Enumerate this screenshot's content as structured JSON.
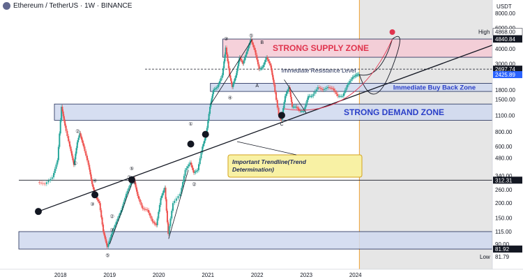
{
  "header": {
    "title": "Ethereum / TetherUS · 1W · BINANCE"
  },
  "currency": "USDT",
  "chart_data": {
    "type": "candlestick-log",
    "x_ticks": [
      "2018",
      "2019",
      "2020",
      "2021",
      "2022",
      "2023",
      "2024"
    ],
    "y_ticks": [
      "8000.00",
      "6000.00",
      "4000.00",
      "3000.00",
      "2400.00",
      "1800.00",
      "1500.00",
      "1100.00",
      "800.00",
      "600.00",
      "480.00",
      "340.00",
      "260.00",
      "200.00",
      "150.00",
      "115.00",
      "90.00"
    ],
    "high": {
      "label": "High",
      "value": "4868.00"
    },
    "low": {
      "label": "Low",
      "value": "81.79"
    },
    "price_tags": [
      {
        "value": "4840.84",
        "style": "dark"
      },
      {
        "value": "2697.74",
        "style": "dark"
      },
      {
        "value": "2425.89",
        "style": "blue"
      },
      {
        "value": "312.31",
        "style": "dark"
      },
      {
        "value": "81.92",
        "style": "dark"
      }
    ],
    "price_path": [
      [
        2017.55,
        300
      ],
      [
        2017.7,
        290
      ],
      [
        2017.85,
        330
      ],
      [
        2017.95,
        460
      ],
      [
        2018.03,
        1300
      ],
      [
        2018.1,
        900
      ],
      [
        2018.2,
        600
      ],
      [
        2018.28,
        420
      ],
      [
        2018.35,
        650
      ],
      [
        2018.4,
        780
      ],
      [
        2018.48,
        600
      ],
      [
        2018.58,
        420
      ],
      [
        2018.65,
        290
      ],
      [
        2018.72,
        230
      ],
      [
        2018.8,
        200
      ],
      [
        2018.88,
        115
      ],
      [
        2018.96,
        85
      ],
      [
        2019.05,
        110
      ],
      [
        2019.15,
        140
      ],
      [
        2019.25,
        175
      ],
      [
        2019.35,
        240
      ],
      [
        2019.45,
        300
      ],
      [
        2019.5,
        320
      ],
      [
        2019.58,
        230
      ],
      [
        2019.68,
        180
      ],
      [
        2019.78,
        175
      ],
      [
        2019.88,
        140
      ],
      [
        2019.96,
        130
      ],
      [
        2020.05,
        220
      ],
      [
        2020.13,
        270
      ],
      [
        2020.2,
        110
      ],
      [
        2020.3,
        200
      ],
      [
        2020.45,
        240
      ],
      [
        2020.55,
        380
      ],
      [
        2020.65,
        440
      ],
      [
        2020.72,
        360
      ],
      [
        2020.8,
        380
      ],
      [
        2020.9,
        600
      ],
      [
        2020.97,
        750
      ],
      [
        2021.05,
        1300
      ],
      [
        2021.12,
        1800
      ],
      [
        2021.2,
        1900
      ],
      [
        2021.3,
        2400
      ],
      [
        2021.37,
        4100
      ],
      [
        2021.45,
        2400
      ],
      [
        2021.5,
        1900
      ],
      [
        2021.58,
        2400
      ],
      [
        2021.65,
        3400
      ],
      [
        2021.72,
        3000
      ],
      [
        2021.8,
        3800
      ],
      [
        2021.88,
        4800
      ],
      [
        2021.96,
        3900
      ],
      [
        2022.05,
        2700
      ],
      [
        2022.12,
        2800
      ],
      [
        2022.2,
        3400
      ],
      [
        2022.28,
        2900
      ],
      [
        2022.35,
        2000
      ],
      [
        2022.45,
        1100
      ],
      [
        2022.5,
        1000
      ],
      [
        2022.58,
        1600
      ],
      [
        2022.66,
        1900
      ],
      [
        2022.72,
        1300
      ],
      [
        2022.8,
        1300
      ],
      [
        2022.88,
        1200
      ],
      [
        2022.96,
        1200
      ],
      [
        2023.05,
        1600
      ],
      [
        2023.13,
        1600
      ],
      [
        2023.25,
        1900
      ],
      [
        2023.35,
        1800
      ],
      [
        2023.45,
        1900
      ],
      [
        2023.55,
        1850
      ],
      [
        2023.65,
        1600
      ],
      [
        2023.75,
        1600
      ],
      [
        2023.85,
        2000
      ],
      [
        2023.95,
        2300
      ],
      [
        2024.02,
        2400
      ],
      [
        2024.08,
        2450
      ]
    ],
    "zones": [
      {
        "label": "STRONG SUPPLY ZONE",
        "from": 3400,
        "to": 4840
      },
      {
        "label": "Immediate Buy Back Zone",
        "from": 1750,
        "to": 2050
      },
      {
        "label": "STRONG DEMAND ZONE",
        "from": 1000,
        "to": 1370
      },
      {
        "label": "",
        "from": 81.92,
        "to": 115
      }
    ],
    "levels": [
      {
        "label": "Immediate Resistance Level",
        "value": 2697.74,
        "style": "dashed"
      },
      {
        "label": "",
        "value": 312.31,
        "style": "solid"
      }
    ],
    "trendline": {
      "from": [
        2017.55,
        170
      ],
      "to": [
        2024.5,
        4300
      ]
    },
    "annotation": {
      "text_line1": "Important Trendline(Trend",
      "text_line2": "Determination)"
    },
    "wave_labels": [
      "①",
      "②",
      "③",
      "④",
      "⑤",
      "A",
      "B",
      "C"
    ],
    "grid": false,
    "forecast_shaded": true
  }
}
